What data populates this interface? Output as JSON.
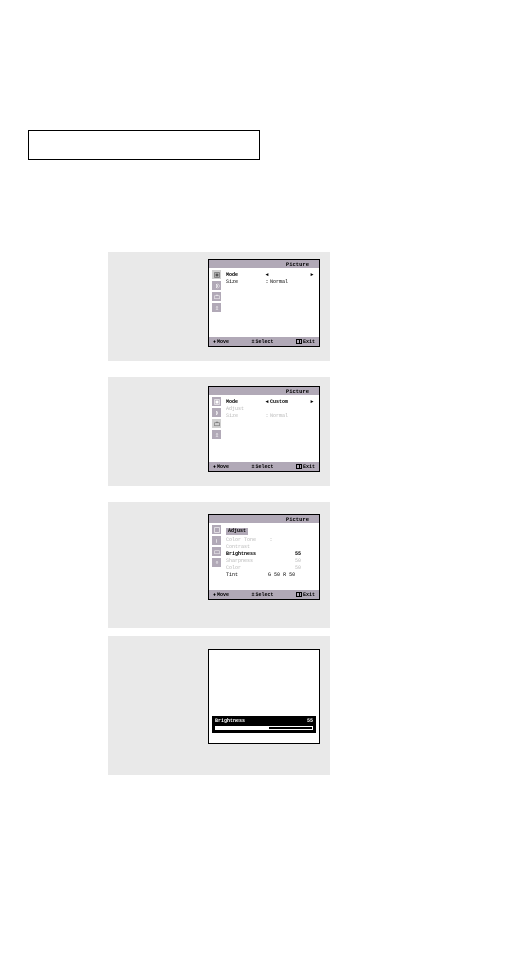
{
  "titleBox": "",
  "osd": {
    "headerLabel": "Picture",
    "footer": {
      "move": "Move",
      "select": "Select",
      "exit": "Exit",
      "moveIcon": "♦",
      "selectIcon": "±"
    },
    "screen1": {
      "rows": [
        {
          "label": "Mode",
          "larrow": "◄",
          "value": "",
          "rarrow": "►",
          "selected": true
        },
        {
          "label": "Size",
          "colon": ":",
          "value": "Normal",
          "selected": false
        }
      ]
    },
    "screen2": {
      "rows": [
        {
          "label": "Mode",
          "larrow": "◄",
          "value": "Custom",
          "rarrow": "►",
          "selected": true
        },
        {
          "label": "Adjust",
          "value": "",
          "dim": true
        },
        {
          "label": "Size",
          "colon": ":",
          "value": "Normal",
          "dim": true
        }
      ]
    },
    "screen3": {
      "subtitle": "Adjust",
      "rows": [
        {
          "label": "Color Tone",
          "colon": ":",
          "value": "",
          "dim": true
        },
        {
          "label": "Contrast",
          "value": "",
          "dim": true
        },
        {
          "label": "Brightness",
          "num": "55",
          "selected": true
        },
        {
          "label": "Sharpness",
          "num": "50",
          "dim": true
        },
        {
          "label": "Color",
          "num": "50",
          "dim": true
        }
      ],
      "tint": {
        "label": "Tint",
        "g": "G",
        "gval": "50",
        "r": "R",
        "rval": "50",
        "dim": true
      }
    },
    "screen4": {
      "label": "Brightness",
      "value": "55",
      "percent": 55
    }
  },
  "colors": {
    "panelBg": "#e9e9e9",
    "osdBg": "#ffffff",
    "barBg": "#b1a9b7",
    "dimText": "#b8b8b8",
    "stroke": "#000000",
    "adjustBg": "#000000",
    "adjustFg": "#ffffff"
  }
}
